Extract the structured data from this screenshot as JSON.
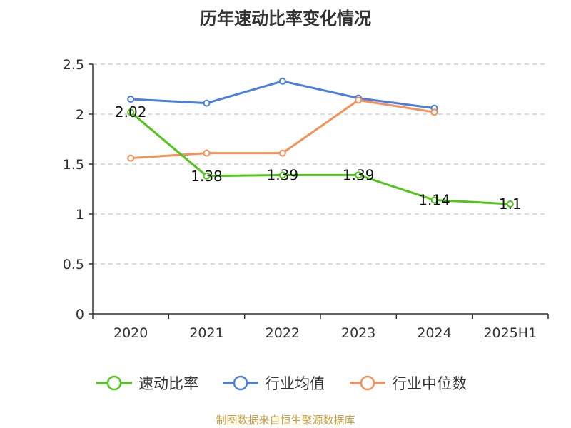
{
  "chart_data": {
    "type": "line",
    "title": "历年速动比率变化情况",
    "categories": [
      "2020",
      "2021",
      "2022",
      "2023",
      "2024",
      "2025H1"
    ],
    "ylim": [
      0,
      2.5
    ],
    "yticks": [
      "0",
      "0.5",
      "1",
      "1.5",
      "2",
      "2.5"
    ],
    "grid": true,
    "legend_position": "bottom",
    "series": [
      {
        "name": "速动比率",
        "color": "#52c41a",
        "values": [
          2.02,
          1.38,
          1.39,
          1.39,
          1.14,
          1.1
        ],
        "labels": [
          "2.02",
          "1.38",
          "1.39",
          "1.39",
          "1.14",
          "1.1"
        ]
      },
      {
        "name": "行业均值",
        "color": "#4a7fdd",
        "values": [
          2.15,
          2.11,
          2.33,
          2.16,
          2.06,
          null
        ]
      },
      {
        "name": "行业中位数",
        "color": "#f4905a",
        "values": [
          1.56,
          1.61,
          1.61,
          2.14,
          2.02,
          null
        ]
      }
    ]
  },
  "source": "制图数据来自恒生聚源数据库"
}
